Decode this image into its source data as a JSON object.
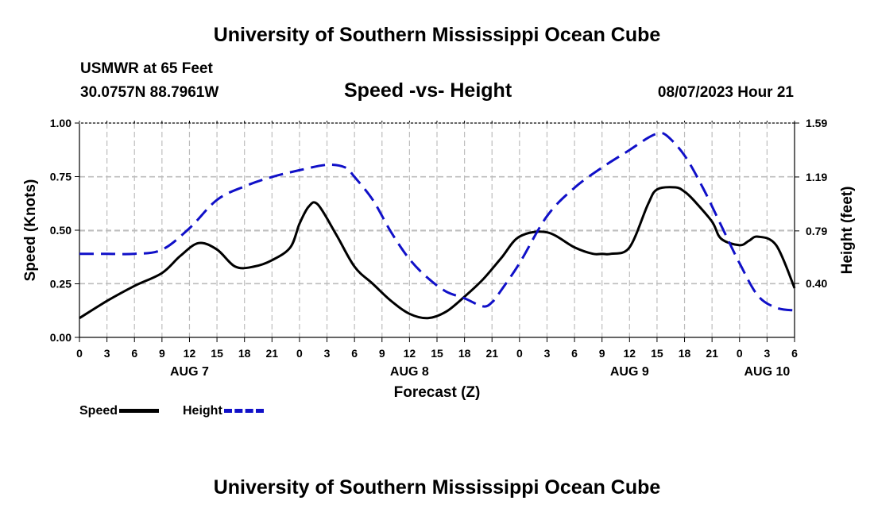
{
  "page_title": "University of Southern Mississippi Ocean Cube",
  "station": "USMWR at 65 Feet",
  "coords": "30.0757N  88.7961W",
  "subtitle": "Speed -vs- Height",
  "datetime": "08/07/2023 Hour 21",
  "footer_title": "University of Southern Mississippi Ocean Cube",
  "legend": {
    "speed": "Speed",
    "height": "Height"
  },
  "colors": {
    "speed": "#000000",
    "height": "#1010c8",
    "grid": "#bdbdbd"
  },
  "chart_data": {
    "type": "line",
    "title": "Speed -vs- Height",
    "xlabel": "Forecast (Z)",
    "ylabel": "Speed (Knots)",
    "y2label": "Height (feet)",
    "xlim": [
      0,
      78
    ],
    "ylim": [
      0,
      1.0
    ],
    "y2lim": [
      0,
      1.59
    ],
    "x_ticks": [
      0,
      3,
      6,
      9,
      12,
      15,
      18,
      21,
      24,
      27,
      30,
      33,
      36,
      39,
      42,
      45,
      48,
      51,
      54,
      57,
      60,
      63,
      66,
      69,
      72,
      75,
      78
    ],
    "x_tick_labels": [
      "0",
      "3",
      "6",
      "9",
      "12",
      "15",
      "18",
      "21",
      "0",
      "3",
      "6",
      "9",
      "12",
      "15",
      "18",
      "21",
      "0",
      "3",
      "6",
      "9",
      "12",
      "15",
      "18",
      "21",
      "0",
      "3",
      "6"
    ],
    "date_labels": [
      {
        "x": 12,
        "label": "AUG 7"
      },
      {
        "x": 36,
        "label": "AUG 8"
      },
      {
        "x": 60,
        "label": "AUG 9"
      },
      {
        "x": 75,
        "label": "AUG 10"
      }
    ],
    "y_ticks": [
      0,
      0.25,
      0.5,
      0.75,
      1.0
    ],
    "y_tick_labels": [
      "0.00",
      "0.25",
      "0.50",
      "0.75",
      "1.00"
    ],
    "y2_ticks": [
      0.4,
      0.79,
      1.19,
      1.59
    ],
    "y2_tick_labels": [
      "0.40",
      "0.79",
      "1.19",
      "1.59"
    ],
    "series": [
      {
        "name": "Speed",
        "axis": "left",
        "style": "solid",
        "x": [
          0,
          3,
          6,
          9,
          11,
          13,
          15,
          17,
          19,
          21,
          23,
          24,
          25,
          26,
          28,
          30,
          32,
          34,
          36,
          38,
          40,
          42,
          44,
          46,
          48,
          51,
          54,
          56,
          57,
          58,
          60,
          62,
          63,
          65,
          66,
          67,
          69,
          70,
          72,
          73,
          74,
          76,
          78
        ],
        "y": [
          0.09,
          0.17,
          0.24,
          0.3,
          0.38,
          0.44,
          0.41,
          0.33,
          0.33,
          0.36,
          0.42,
          0.53,
          0.61,
          0.62,
          0.48,
          0.33,
          0.25,
          0.17,
          0.11,
          0.09,
          0.12,
          0.19,
          0.27,
          0.37,
          0.47,
          0.49,
          0.42,
          0.39,
          0.39,
          0.39,
          0.42,
          0.62,
          0.69,
          0.7,
          0.68,
          0.64,
          0.54,
          0.46,
          0.43,
          0.45,
          0.47,
          0.43,
          0.23
        ]
      },
      {
        "name": "Height",
        "axis": "right",
        "style": "dashed",
        "x": [
          0,
          3,
          6,
          9,
          12,
          15,
          18,
          21,
          24,
          27,
          29,
          30,
          32,
          34,
          36,
          38,
          40,
          42,
          44,
          45,
          46,
          48,
          51,
          54,
          57,
          60,
          62,
          63,
          64,
          66,
          68,
          70,
          72,
          74,
          76,
          78
        ],
        "y": [
          0.62,
          0.62,
          0.62,
          0.65,
          0.81,
          1.02,
          1.12,
          1.19,
          1.24,
          1.28,
          1.26,
          1.19,
          1.02,
          0.78,
          0.58,
          0.44,
          0.34,
          0.29,
          0.23,
          0.26,
          0.35,
          0.55,
          0.9,
          1.11,
          1.26,
          1.39,
          1.48,
          1.51,
          1.5,
          1.35,
          1.11,
          0.83,
          0.55,
          0.31,
          0.22,
          0.2
        ]
      }
    ]
  }
}
